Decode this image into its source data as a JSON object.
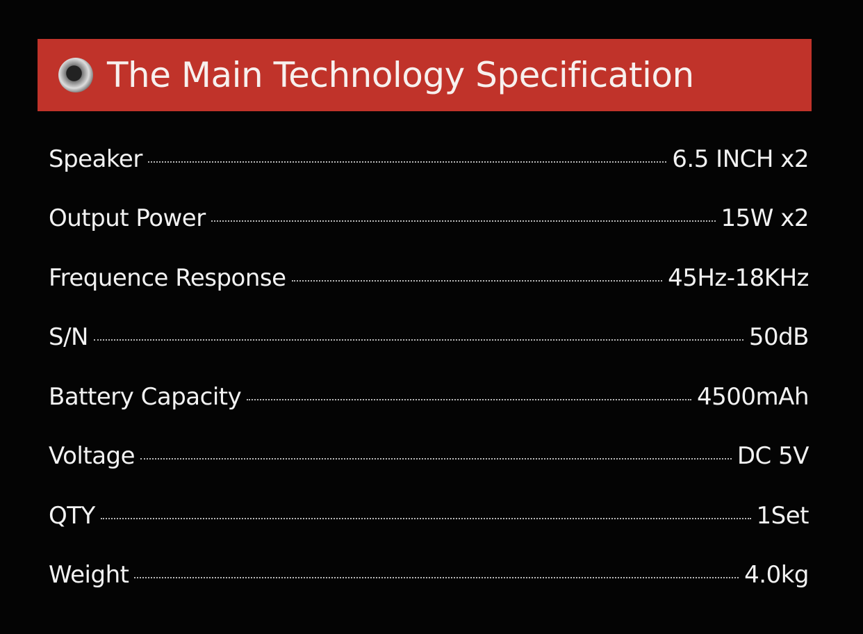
{
  "header": {
    "title": "The Main Technology Specification"
  },
  "specs": [
    {
      "label": "Speaker",
      "value": "6.5 INCH x2"
    },
    {
      "label": "Output Power",
      "value": "15W x2"
    },
    {
      "label": "Frequence Response",
      "value": "45Hz-18KHz"
    },
    {
      "label": "S/N",
      "value": "50dB"
    },
    {
      "label": "Battery Capacity",
      "value": "4500mAh"
    },
    {
      "label": "Voltage",
      "value": "DC 5V"
    },
    {
      "label": "QTY",
      "value": "1Set"
    },
    {
      "label": "Weight",
      "value": "4.0kg"
    }
  ]
}
